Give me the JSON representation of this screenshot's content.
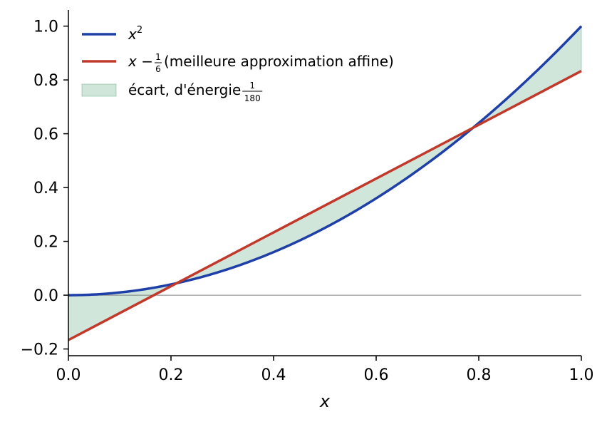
{
  "chart_data": {
    "type": "line",
    "title": "",
    "xlabel": "x",
    "ylabel": "",
    "xlim": [
      0.0,
      1.0
    ],
    "ylim": [
      -0.225,
      1.06
    ],
    "grid": false,
    "legend_position": "top-left",
    "x_ticks": [
      "0.0",
      "0.2",
      "0.4",
      "0.6",
      "0.8",
      "1.0"
    ],
    "y_ticks": [
      "−0.2",
      "0.0",
      "0.2",
      "0.4",
      "0.6",
      "0.8",
      "1.0"
    ],
    "reference_line_y": 0.0,
    "series": [
      {
        "name": "x²",
        "color": "#1f3fa8",
        "x": [
          0.0,
          0.1,
          0.2,
          0.3,
          0.4,
          0.5,
          0.6,
          0.7,
          0.8,
          0.9,
          1.0
        ],
        "y": [
          0.0,
          0.01,
          0.04,
          0.09,
          0.16,
          0.25,
          0.36,
          0.49,
          0.64,
          0.81,
          1.0
        ]
      },
      {
        "name": "x − 1/6 (meilleure approximation affine)",
        "color": "#c0392b",
        "x": [
          0.0,
          1.0
        ],
        "y": [
          -0.1667,
          0.8333
        ]
      }
    ],
    "fill_between": {
      "name": "écart, d'énergie 1/180",
      "color": "#2e8b57",
      "opacity": 0.22
    },
    "legend": {
      "item1": {
        "base": "x",
        "sup": "2"
      },
      "item2": {
        "pre": "x − ",
        "num": "1",
        "den": "6",
        "post": " (meilleure approximation affine)"
      },
      "item3": {
        "pre": "écart, d'énergie ",
        "num": "1",
        "den": "180"
      }
    }
  }
}
